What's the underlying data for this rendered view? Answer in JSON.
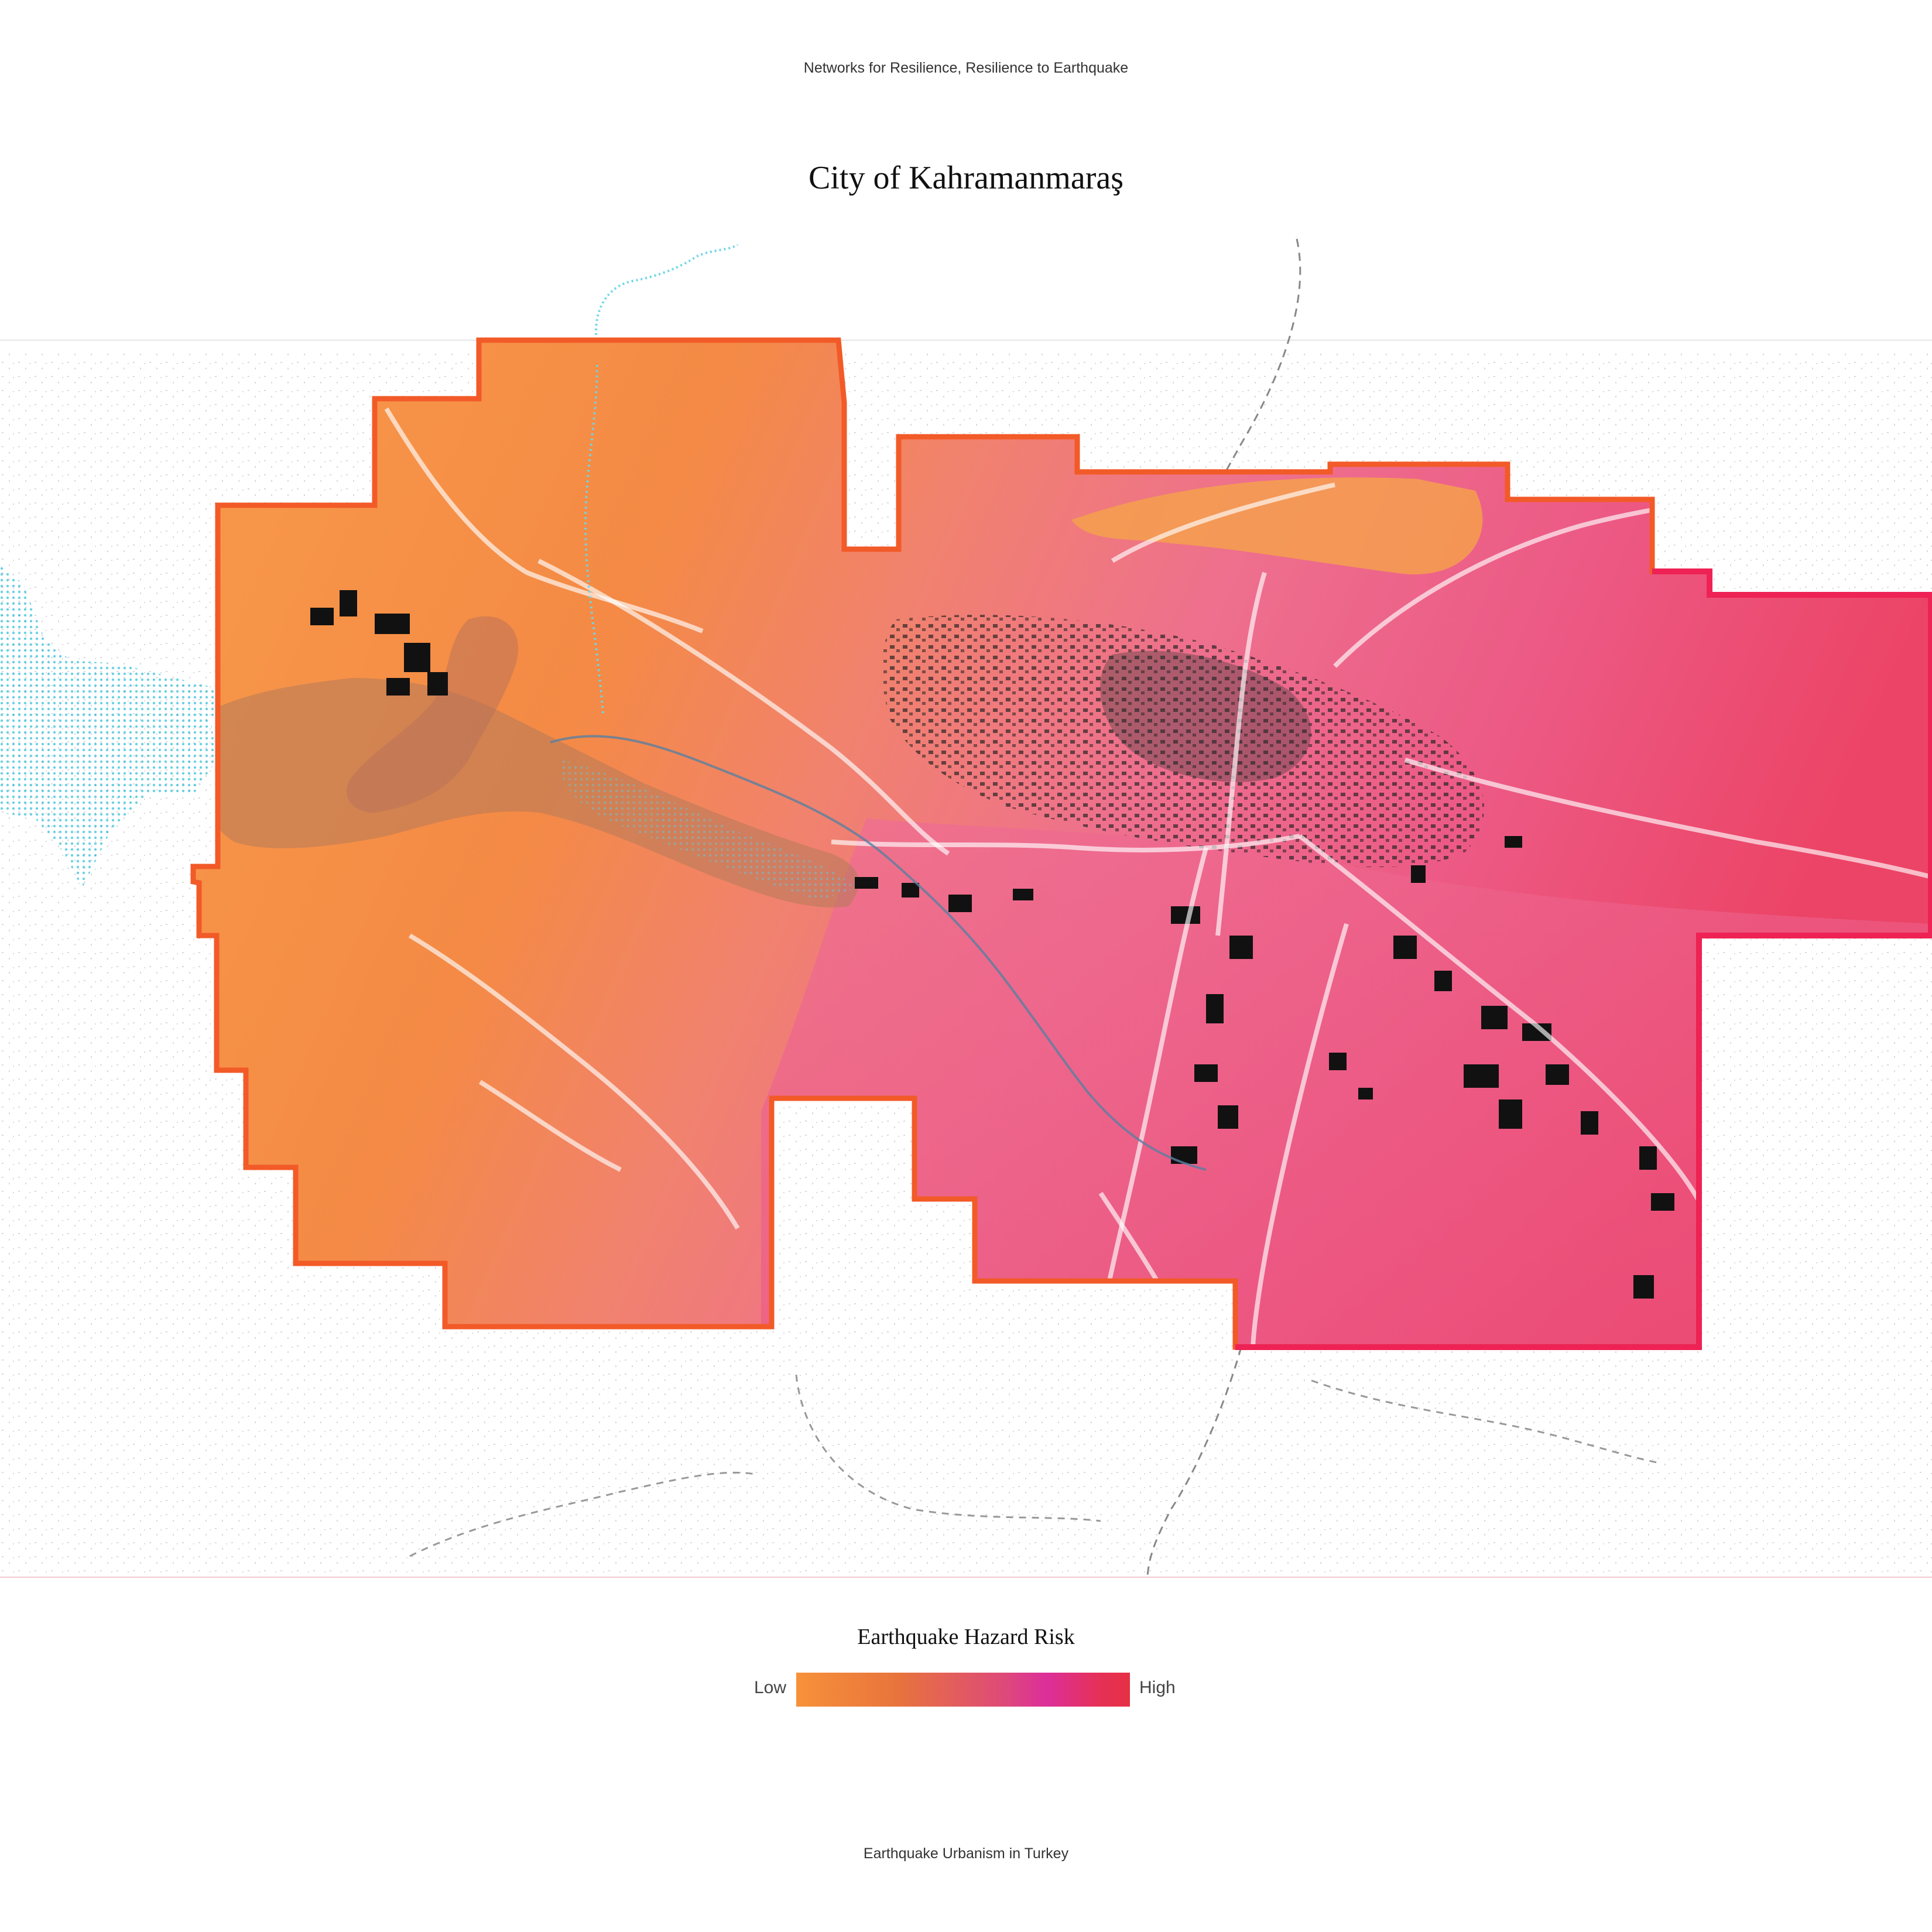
{
  "header": {
    "series_caption": "Networks for Resilience, Resilience to Earthquake",
    "title": "City of Kahramanmaraş"
  },
  "map": {
    "features": [
      "hazard-risk-surface",
      "reservoir",
      "river",
      "roads",
      "building-footprints",
      "boundary-lines"
    ],
    "colors": {
      "low_risk": "#f7913a",
      "mid_risk": "#ef6f8c",
      "high_risk": "#e63a72",
      "reservoir": "#6fd6e6",
      "buildings": "#111111",
      "boundary_edge_low": "#f25a28",
      "boundary_edge_high": "#ee2254"
    }
  },
  "legend": {
    "title": "Earthquake Hazard Risk",
    "low_label": "Low",
    "high_label": "High",
    "gradient_colors": [
      "#f7913a",
      "#e8743c",
      "#de4a78",
      "#dc2f9a",
      "#e5305a",
      "#e63044"
    ]
  },
  "footer": {
    "caption": "Earthquake Urbanism in Turkey"
  }
}
